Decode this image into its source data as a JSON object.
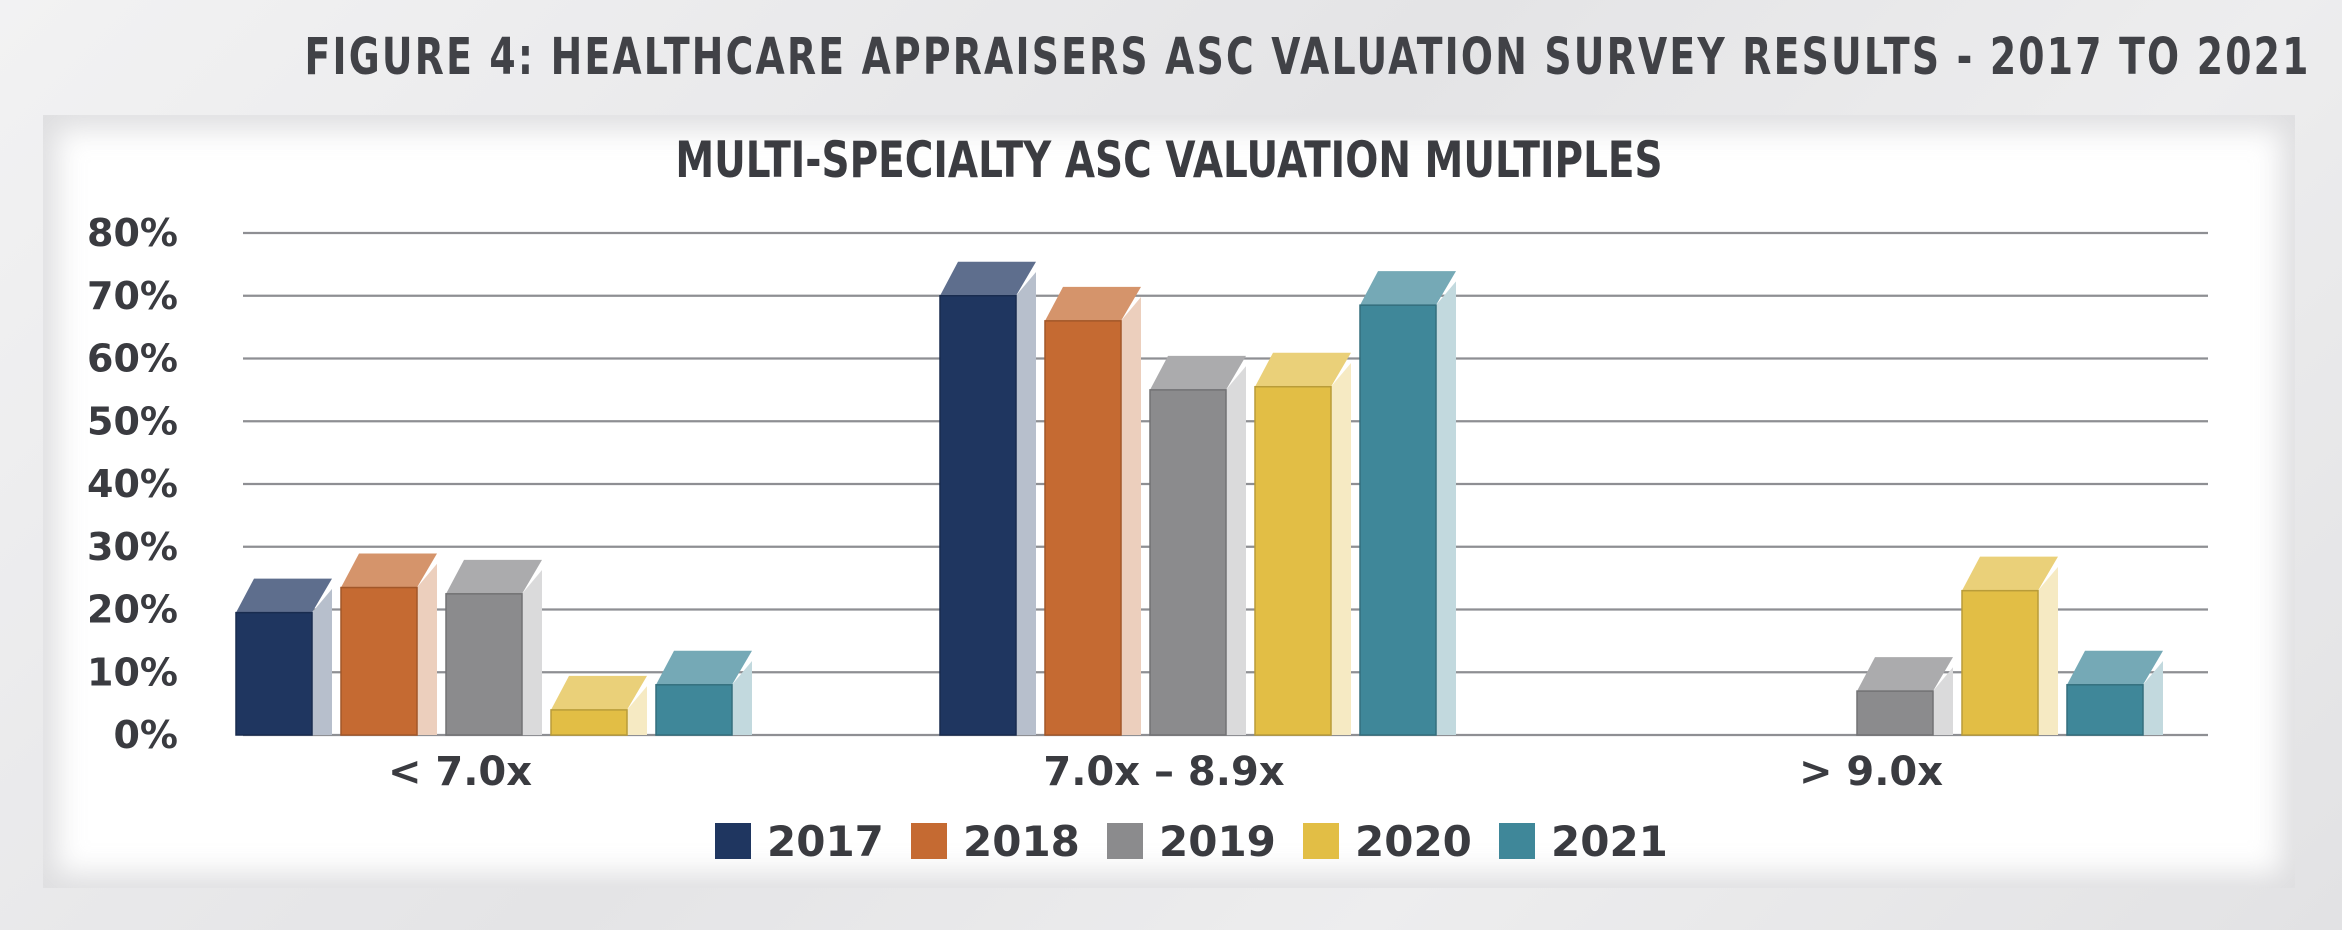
{
  "figure_title": "FIGURE 4: HEALTHCARE APPRAISERS ASC VALUATION SURVEY RESULTS - 2017 TO 2021",
  "colors": {
    "title_text": "#414247",
    "axis_text": "#3a3b40",
    "gridline": "#8e8f93",
    "2017": "#1f3660",
    "2018": "#c56a32",
    "2019": "#8b8b8d",
    "2020": "#e2be45",
    "2021": "#3f8799"
  },
  "chart_data": {
    "type": "bar",
    "title": "MULTI-SPECIALTY ASC VALUATION MULTIPLES",
    "xlabel": "",
    "ylabel": "",
    "categories": [
      "< 7.0x",
      "7.0x – 8.9x",
      "> 9.0x"
    ],
    "series": [
      {
        "name": "2017",
        "values": [
          19.5,
          70,
          0
        ]
      },
      {
        "name": "2018",
        "values": [
          23.5,
          66,
          0
        ]
      },
      {
        "name": "2019",
        "values": [
          22.5,
          55,
          7
        ]
      },
      {
        "name": "2020",
        "values": [
          4,
          55.5,
          23
        ]
      },
      {
        "name": "2021",
        "values": [
          8,
          68.5,
          8
        ]
      }
    ],
    "ylim": [
      0,
      80
    ],
    "yticks": [
      "0%",
      "10%",
      "20%",
      "30%",
      "40%",
      "50%",
      "60%",
      "70%",
      "80%"
    ],
    "grid": true,
    "legend_position": "bottom"
  }
}
